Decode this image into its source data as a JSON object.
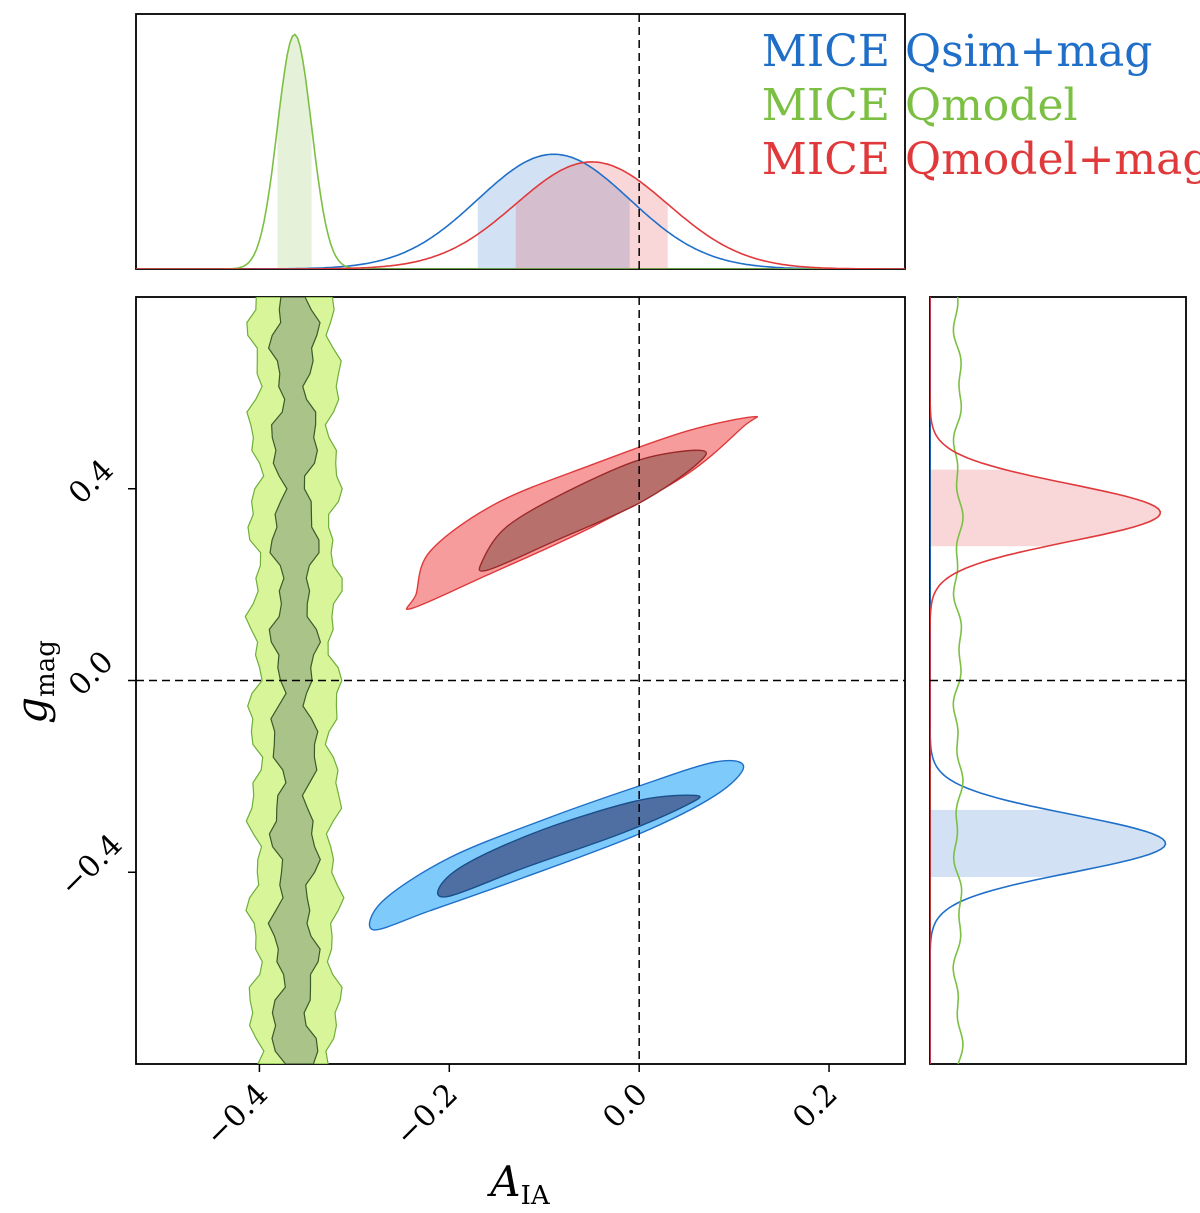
{
  "chart_data": {
    "type": "corner",
    "title": "",
    "xlabel": {
      "symbol": "A",
      "subscript": "IA"
    },
    "ylabel": {
      "symbol": "g",
      "subscript": "mag"
    },
    "xlim": [
      -0.53,
      0.28
    ],
    "ylim": [
      -0.8,
      0.8
    ],
    "xticks": [
      -0.4,
      -0.2,
      0.0,
      0.2
    ],
    "xtick_labels": [
      "−0.4",
      "−0.2",
      "0.0",
      "0.2"
    ],
    "yticks": [
      -0.4,
      0.0,
      0.4
    ],
    "ytick_labels": [
      "−0.4",
      "0.0",
      "0.4"
    ],
    "reference_lines": {
      "x": 0.0,
      "y": 0.0,
      "style": "dashed"
    },
    "legend_position": "top-right",
    "series": [
      {
        "name": "MICE Qsim+mag",
        "label_prefix": "MICE",
        "label_suffix": "Qsim+mag",
        "color": "#1f6fc9",
        "fill_outer": "#7ecbfb",
        "fill_inner": "#4f6fa2",
        "A_IA": {
          "mean": -0.09,
          "sigma": 0.08,
          "band": [
            -0.17,
            -0.01
          ]
        },
        "g_mag": {
          "mean": -0.34,
          "sigma": 0.06,
          "band": [
            -0.41,
            -0.27
          ]
        },
        "correlation": 0.96,
        "contour_outer": [
          [
            -0.28,
            -0.52
          ],
          [
            -0.22,
            -0.48
          ],
          [
            -0.12,
            -0.41
          ],
          [
            0.0,
            -0.32
          ],
          [
            0.08,
            -0.24
          ],
          [
            0.11,
            -0.18
          ],
          [
            0.08,
            -0.17
          ],
          [
            0.0,
            -0.22
          ],
          [
            -0.1,
            -0.29
          ],
          [
            -0.2,
            -0.37
          ],
          [
            -0.27,
            -0.46
          ]
        ],
        "contour_inner": [
          [
            -0.2,
            -0.45
          ],
          [
            -0.12,
            -0.39
          ],
          [
            -0.02,
            -0.32
          ],
          [
            0.05,
            -0.26
          ],
          [
            0.06,
            -0.24
          ],
          [
            0.0,
            -0.25
          ],
          [
            -0.1,
            -0.31
          ],
          [
            -0.18,
            -0.38
          ],
          [
            -0.21,
            -0.43
          ]
        ]
      },
      {
        "name": "MICE Qmodel",
        "label_prefix": "MICE",
        "label_suffix": "Qmodel",
        "color": "#7bc043",
        "fill_outer": "#d8f59a",
        "fill_inner": "#a9c388",
        "A_IA": {
          "mean": -0.363,
          "sigma": 0.018,
          "band": [
            -0.381,
            -0.345
          ]
        },
        "g_mag": {
          "mean": 0.0,
          "sigma": 3.0
        }
      },
      {
        "name": "MICE Qmodel+mag",
        "label_prefix": "MICE",
        "label_suffix": "Qmodel+mag",
        "color": "#e0393b",
        "fill_outer": "#f79c9c",
        "fill_inner": "#b8706d",
        "A_IA": {
          "mean": -0.05,
          "sigma": 0.08,
          "band": [
            -0.13,
            0.03
          ]
        },
        "g_mag": {
          "mean": 0.35,
          "sigma": 0.06,
          "band": [
            0.28,
            0.44
          ]
        },
        "correlation": 0.96,
        "contour_outer": [
          [
            -0.24,
            0.15
          ],
          [
            -0.16,
            0.22
          ],
          [
            -0.05,
            0.32
          ],
          [
            0.05,
            0.43
          ],
          [
            0.11,
            0.53
          ],
          [
            0.12,
            0.55
          ],
          [
            0.05,
            0.52
          ],
          [
            -0.05,
            0.45
          ],
          [
            -0.15,
            0.37
          ],
          [
            -0.22,
            0.27
          ],
          [
            -0.235,
            0.18
          ]
        ],
        "contour_inner": [
          [
            -0.16,
            0.23
          ],
          [
            -0.09,
            0.29
          ],
          [
            0.0,
            0.37
          ],
          [
            0.06,
            0.45
          ],
          [
            0.065,
            0.48
          ],
          [
            0.0,
            0.46
          ],
          [
            -0.08,
            0.39
          ],
          [
            -0.14,
            0.32
          ],
          [
            -0.165,
            0.25
          ]
        ]
      }
    ]
  }
}
